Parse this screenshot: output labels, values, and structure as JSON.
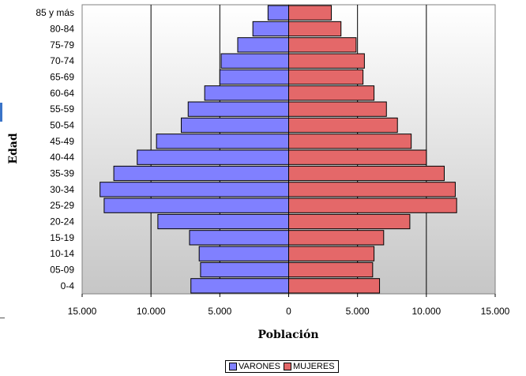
{
  "colors": {
    "male": "#8080ff",
    "female": "#e46869",
    "bar_border": "#000000",
    "grid": "#000000",
    "plot_bg_top": "#ffffff",
    "plot_bg_bottom": "#c6c6c6"
  },
  "chart_data": {
    "type": "bar",
    "orientation": "horizontal",
    "title": "",
    "xlabel": "Población",
    "ylabel": "Edad",
    "categories": [
      "0-4",
      "05-09",
      "10-14",
      "15-19",
      "20-24",
      "25-29",
      "30-34",
      "35-39",
      "40-44",
      "45-49",
      "50-54",
      "55-59",
      "60-64",
      "65-69",
      "70-74",
      "75-79",
      "80-84",
      "85 y más"
    ],
    "series": [
      {
        "name": "VARONES",
        "color": "#8080ff",
        "side": "left",
        "values": [
          7100,
          6400,
          6500,
          7200,
          9500,
          13400,
          13700,
          12700,
          11000,
          9600,
          7800,
          7300,
          6100,
          5000,
          4900,
          3700,
          2600,
          1500
        ]
      },
      {
        "name": "MUJERES",
        "color": "#e46869",
        "side": "right",
        "values": [
          6600,
          6100,
          6200,
          6900,
          8800,
          12200,
          12100,
          11300,
          10000,
          8900,
          7900,
          7100,
          6200,
          5400,
          5500,
          4900,
          3800,
          3100
        ]
      }
    ],
    "xlim": [
      -15000,
      15000
    ],
    "xticks": [
      -15000,
      -10000,
      -5000,
      0,
      5000,
      10000,
      15000
    ],
    "xtick_labels": [
      "15.000",
      "10.000",
      "5.000",
      "0",
      "5.000",
      "10.000",
      "15.000"
    ],
    "grid": true,
    "legend_position": "bottom-center"
  }
}
